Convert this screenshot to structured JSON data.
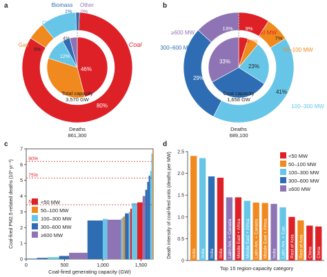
{
  "colors": {
    "coal": "#dd2127",
    "gas": "#f08a1e",
    "oil": "#67c6e8",
    "biomass": "#2e6db3",
    "other": "#8f74b5",
    "lt50": "#dd2127",
    "c50_100": "#f08a1e",
    "c100_300": "#67c6e8",
    "c300_600": "#2e6db3",
    "ge600": "#8f74b5",
    "threshold": "#d62728"
  },
  "panel_labels": {
    "a": "a",
    "b": "b",
    "c": "c",
    "d": "d"
  },
  "chart_data": [
    {
      "id": "a",
      "type": "pie",
      "center_labels": {
        "inner_title": "Total capacity",
        "inner_value": "3,570 GW",
        "outer_title": "Deaths",
        "outer_value": "861,300"
      },
      "categories": [
        "Coal",
        "Gas",
        "Oil",
        "Biomass",
        "Other"
      ],
      "series": [
        {
          "values": [
            80,
            5,
            10,
            1,
            0
          ],
          "labels": [
            "80%",
            "5%",
            "",
            "1%",
            "0%"
          ]
        },
        {
          "values": [
            46,
            34,
            12,
            4,
            4
          ],
          "labels": [
            "46%",
            "",
            "12%",
            "4%",
            ""
          ]
        }
      ],
      "legend": [
        "Coal",
        "Gas",
        "Oil",
        "Biomass",
        "Other"
      ]
    },
    {
      "id": "b",
      "type": "pie",
      "center_labels": {
        "inner_title": "Coal capacity",
        "inner_value": "1,658 GW",
        "outer_title": "Deaths",
        "outer_value": "689,100"
      },
      "categories": [
        "<50 MW",
        "50–100 MW",
        "100–300 MW",
        "300–600 MW",
        "≥600 MW"
      ],
      "series": [
        {
          "values": [
            9,
            7,
            41,
            29,
            13
          ],
          "labels": [
            "9%",
            "7%",
            "41%",
            "29%",
            "13%"
          ]
        },
        {
          "values": [
            5,
            6,
            23,
            33,
            33
          ],
          "labels": [
            "5%",
            "6%",
            "23%",
            "",
            "33%"
          ]
        }
      ],
      "legend": [
        "<50 MW",
        "50–100 MW",
        "100–300 MW",
        "300–600 MW",
        "≥600 MW"
      ]
    },
    {
      "id": "c",
      "type": "bar",
      "xlabel": "Coal-fired generating capacity (GW)",
      "ylabel": "Coal-fired PM2.5-related deaths (10³ yr⁻¹)",
      "xlim": [
        0,
        1658
      ],
      "ylim": [
        0,
        7
      ],
      "xticks": [
        "0",
        "500",
        "1,000",
        "1,500"
      ],
      "yticks": [
        "0",
        "1",
        "2",
        "3",
        "4",
        "5",
        "6",
        "7"
      ],
      "thresholds": [
        {
          "label": "90%",
          "value": 6.2
        },
        {
          "label": "75%",
          "value": 5.15
        },
        {
          "label": "50%",
          "value": 3.45
        }
      ],
      "legend": [
        "<50 MW",
        "50–100 MW",
        "100–300 MW",
        "300–600 MW",
        "≥600 MW"
      ],
      "bars": [
        {
          "x0": 0,
          "x1": 140,
          "y": 0.03,
          "cat": "c300_600"
        },
        {
          "x0": 140,
          "x1": 280,
          "y": 0.08,
          "cat": "c300_600"
        },
        {
          "x0": 280,
          "x1": 430,
          "y": 0.12,
          "cat": "c100_300"
        },
        {
          "x0": 430,
          "x1": 560,
          "y": 0.2,
          "cat": "c300_600"
        },
        {
          "x0": 560,
          "x1": 800,
          "y": 0.4,
          "cat": "ge600"
        },
        {
          "x0": 800,
          "x1": 1000,
          "y": 2.45,
          "cat": "c300_600"
        },
        {
          "x0": 1000,
          "x1": 1060,
          "y": 2.55,
          "cat": "c100_300"
        },
        {
          "x0": 1060,
          "x1": 1240,
          "y": 2.5,
          "cat": "ge600"
        },
        {
          "x0": 1240,
          "x1": 1265,
          "y": 2.6,
          "cat": "c100_300"
        },
        {
          "x0": 1265,
          "x1": 1290,
          "y": 2.7,
          "cat": "c50_100"
        },
        {
          "x0": 1290,
          "x1": 1340,
          "y": 2.9,
          "cat": "c300_600"
        },
        {
          "x0": 1340,
          "x1": 1360,
          "y": 3.0,
          "cat": "c100_300"
        },
        {
          "x0": 1360,
          "x1": 1380,
          "y": 3.2,
          "cat": "lt50"
        },
        {
          "x0": 1380,
          "x1": 1450,
          "y": 3.55,
          "cat": "c100_300"
        },
        {
          "x0": 1450,
          "x1": 1520,
          "y": 3.6,
          "cat": "lt50"
        },
        {
          "x0": 1520,
          "x1": 1555,
          "y": 4.0,
          "cat": "ge600"
        },
        {
          "x0": 1555,
          "x1": 1580,
          "y": 4.4,
          "cat": "c300_600"
        },
        {
          "x0": 1580,
          "x1": 1600,
          "y": 4.9,
          "cat": "c300_600"
        },
        {
          "x0": 1600,
          "x1": 1620,
          "y": 5.3,
          "cat": "c300_600"
        },
        {
          "x0": 1620,
          "x1": 1635,
          "y": 5.6,
          "cat": "c100_300"
        },
        {
          "x0": 1635,
          "x1": 1648,
          "y": 6.7,
          "cat": "c100_300"
        },
        {
          "x0": 1648,
          "x1": 1658,
          "y": 6.9,
          "cat": "c50_100"
        }
      ]
    },
    {
      "id": "d",
      "type": "bar",
      "ylabel": "Death intensity of coal-fired units (deaths per MW)",
      "xlabel": "Top 15 region-capacity category",
      "ylim": [
        0,
        2.5
      ],
      "yticks": [
        "0",
        "0.5",
        "1.0",
        "1.5",
        "2.0",
        "2.5"
      ],
      "legend": [
        "<50 MW",
        "50–100 MW",
        "100–300 MW",
        "300–600 MW",
        "≥600 MW"
      ],
      "bars": [
        {
          "label": "India",
          "value": 2.4,
          "cat": "c50_100"
        },
        {
          "label": "India",
          "value": 2.35,
          "cat": "c100_300"
        },
        {
          "label": "India",
          "value": 1.93,
          "cat": "c300_600"
        },
        {
          "label": "India",
          "value": 1.9,
          "cat": "lt50"
        },
        {
          "label": "Latin Am. + Canada",
          "value": 1.45,
          "cat": "ge600"
        },
        {
          "label": "Middle East + Africa",
          "value": 1.45,
          "cat": "lt50"
        },
        {
          "label": "Middle East + Africa",
          "value": 1.37,
          "cat": "c100_300"
        },
        {
          "label": "Latin Am. + Canada",
          "value": 1.33,
          "cat": "c50_100"
        },
        {
          "label": "Middle East + Africa",
          "value": 1.32,
          "cat": "c50_100"
        },
        {
          "label": "India",
          "value": 1.3,
          "cat": "ge600"
        },
        {
          "label": "Latin Am. + Can.",
          "value": 1.22,
          "cat": "c100_300"
        },
        {
          "label": "Rest of Asia",
          "value": 1.0,
          "cat": "lt50"
        },
        {
          "label": "Rest of Asia",
          "value": 0.92,
          "cat": "c50_100"
        },
        {
          "label": "China",
          "value": 0.8,
          "cat": "lt50"
        },
        {
          "label": "China",
          "value": 0.78,
          "cat": "lt50"
        }
      ]
    }
  ]
}
